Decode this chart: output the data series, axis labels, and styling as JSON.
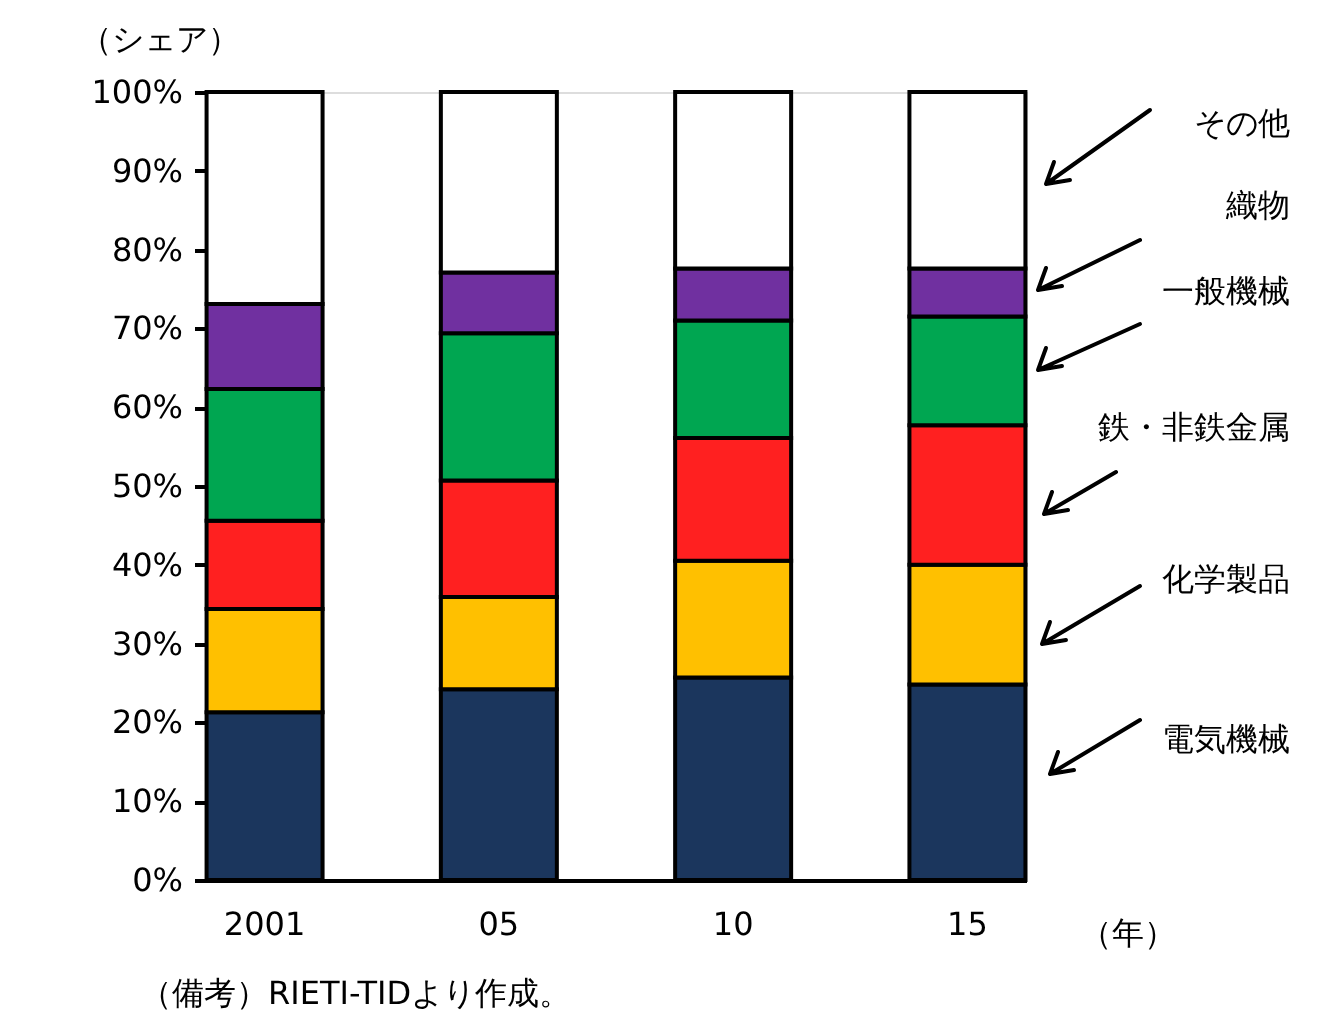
{
  "chart_data": {
    "type": "bar",
    "stacked": true,
    "ylabel": "（シェア）",
    "xlabel": "（年）",
    "categories": [
      "2001",
      "05",
      "10",
      "15"
    ],
    "series": [
      {
        "name": "電気機械",
        "color": "#1b365d",
        "values": [
          21.3,
          24.2,
          25.7,
          24.8
        ]
      },
      {
        "name": "化学製品",
        "color": "#ffc000",
        "values": [
          13.1,
          11.7,
          14.8,
          15.2
        ]
      },
      {
        "name": "鉄・非鉄金属",
        "color": "#ff2020",
        "values": [
          11.2,
          14.8,
          15.6,
          17.7
        ]
      },
      {
        "name": "一般機械",
        "color": "#00a651",
        "values": [
          16.7,
          18.7,
          14.9,
          13.8
        ]
      },
      {
        "name": "織物",
        "color": "#7030a0",
        "values": [
          10.8,
          7.7,
          6.6,
          6.1
        ]
      },
      {
        "name": "その他",
        "color": "#ffffff",
        "values": [
          26.9,
          22.9,
          22.4,
          22.4
        ]
      }
    ],
    "ylim": [
      0,
      100
    ],
    "yticks": [
      {
        "value": 0,
        "label": "0%"
      },
      {
        "value": 10,
        "label": "10%"
      },
      {
        "value": 20,
        "label": "20%"
      },
      {
        "value": 30,
        "label": "30%"
      },
      {
        "value": 40,
        "label": "40%"
      },
      {
        "value": 50,
        "label": "50%"
      },
      {
        "value": 60,
        "label": "60%"
      },
      {
        "value": 70,
        "label": "70%"
      },
      {
        "value": 80,
        "label": "80%"
      },
      {
        "value": 90,
        "label": "90%"
      },
      {
        "value": 100,
        "label": "100%"
      }
    ],
    "grid": false,
    "annotations": [
      "（備考）RIETI-TIDより作成。"
    ]
  }
}
